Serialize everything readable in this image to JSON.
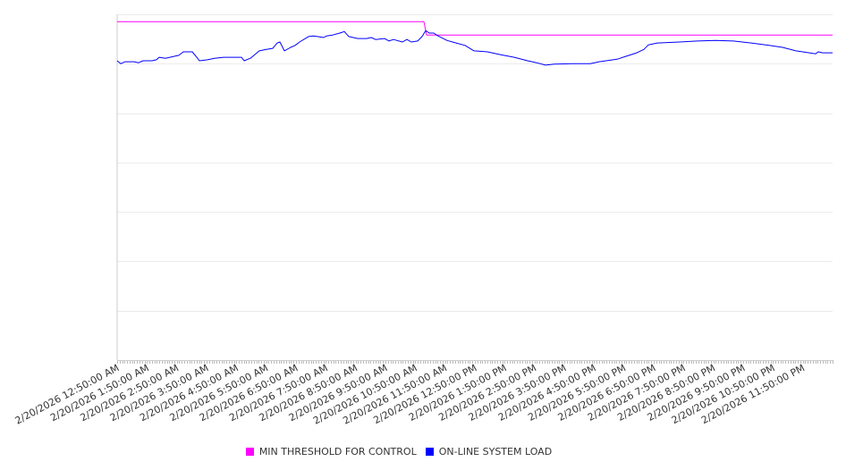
{
  "chart_data": {
    "type": "line",
    "title": "",
    "xlabel": "",
    "ylabel": "",
    "x_units": "hours after 2/20/2026 12:50:00 AM",
    "xlim": [
      0,
      24
    ],
    "ylim": [
      0,
      7
    ],
    "y_gridlines": [
      0,
      1,
      2,
      3,
      4,
      5,
      6,
      7
    ],
    "y_tick_labels_shown": false,
    "grid": true,
    "legend_position": "bottom",
    "x_tick_labels": [
      "2/20/2026 12:50:00 AM",
      "2/20/2026 1:50:00 AM",
      "2/20/2026 2:50:00 AM",
      "2/20/2026 3:50:00 AM",
      "2/20/2026 4:50:00 AM",
      "2/20/2026 5:50:00 AM",
      "2/20/2026 6:50:00 AM",
      "2/20/2026 7:50:00 AM",
      "2/20/2026 8:50:00 AM",
      "2/20/2026 9:50:00 AM",
      "2/20/2026 10:50:00 AM",
      "2/20/2026 11:50:00 AM",
      "2/20/2026 12:50:00 PM",
      "2/20/2026 1:50:00 PM",
      "2/20/2026 2:50:00 PM",
      "2/20/2026 3:50:00 PM",
      "2/20/2026 4:50:00 PM",
      "2/20/2026 5:50:00 PM",
      "2/20/2026 6:50:00 PM",
      "2/20/2026 7:50:00 PM",
      "2/20/2026 8:50:00 PM",
      "2/20/2026 9:50:00 PM",
      "2/20/2026 10:50:00 PM",
      "2/20/2026 11:50:00 PM"
    ],
    "series": [
      {
        "name": "MIN THRESHOLD FOR CONTROL",
        "color": "#ff00ff",
        "x": [
          0,
          10.29,
          10.38,
          24
        ],
        "y": [
          6.85,
          6.85,
          6.58,
          6.58
        ]
      },
      {
        "name": "ON-LINE SYSTEM LOAD",
        "color": "#0000ff",
        "x": [
          0,
          0.12,
          0.27,
          0.57,
          0.72,
          0.87,
          1.17,
          1.32,
          1.41,
          1.62,
          1.92,
          2.07,
          2.22,
          2.52,
          2.67,
          2.76,
          3.03,
          3.27,
          3.57,
          4.17,
          4.26,
          4.47,
          4.77,
          5.01,
          5.22,
          5.37,
          5.46,
          5.61,
          5.82,
          5.97,
          6.12,
          6.42,
          6.57,
          6.72,
          6.93,
          7.02,
          7.23,
          7.47,
          7.62,
          7.77,
          8.07,
          8.37,
          8.52,
          8.67,
          8.97,
          9.12,
          9.27,
          9.57,
          9.72,
          9.87,
          10.08,
          10.23,
          10.35,
          10.47,
          10.62,
          10.77,
          11.07,
          11.37,
          11.67,
          11.97,
          12.42,
          12.87,
          13.32,
          13.77,
          14.07,
          14.37,
          14.67,
          15.27,
          15.87,
          16.17,
          16.77,
          17.07,
          17.43,
          17.67,
          17.82,
          18.12,
          18.87,
          19.47,
          20.07,
          20.67,
          21.27,
          21.87,
          22.32,
          22.77,
          23.22,
          23.43,
          23.52,
          23.67,
          24.0
        ],
        "y": [
          6.06,
          6.0,
          6.04,
          6.04,
          6.02,
          6.06,
          6.06,
          6.08,
          6.13,
          6.11,
          6.15,
          6.17,
          6.24,
          6.24,
          6.13,
          6.06,
          6.08,
          6.11,
          6.13,
          6.13,
          6.06,
          6.11,
          6.26,
          6.29,
          6.31,
          6.42,
          6.44,
          6.26,
          6.33,
          6.37,
          6.44,
          6.55,
          6.56,
          6.55,
          6.53,
          6.56,
          6.58,
          6.62,
          6.65,
          6.55,
          6.51,
          6.51,
          6.53,
          6.49,
          6.51,
          6.46,
          6.49,
          6.44,
          6.49,
          6.44,
          6.46,
          6.55,
          6.67,
          6.62,
          6.62,
          6.56,
          6.47,
          6.42,
          6.37,
          6.26,
          6.24,
          6.18,
          6.13,
          6.06,
          6.02,
          5.97,
          5.99,
          6.0,
          6.0,
          6.04,
          6.09,
          6.15,
          6.22,
          6.29,
          6.38,
          6.42,
          6.44,
          6.46,
          6.47,
          6.46,
          6.42,
          6.37,
          6.33,
          6.26,
          6.22,
          6.2,
          6.24,
          6.22,
          6.22
        ]
      }
    ]
  },
  "legend": {
    "items": [
      {
        "label": "MIN THRESHOLD FOR CONTROL",
        "color": "#ff00ff"
      },
      {
        "label": "ON-LINE SYSTEM LOAD",
        "color": "#0000ff"
      }
    ]
  }
}
